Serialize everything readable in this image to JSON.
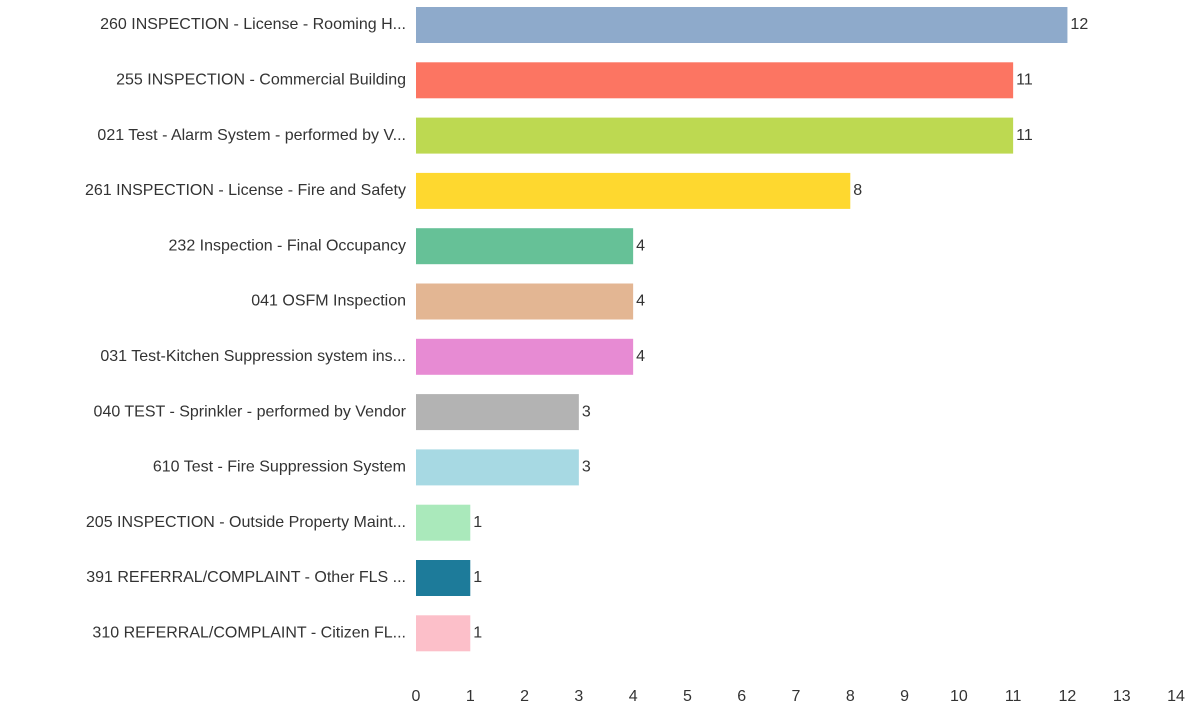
{
  "chart_data": {
    "type": "bar",
    "orientation": "horizontal",
    "categories": [
      "260 INSPECTION - License - Rooming H...",
      "255 INSPECTION - Commercial Building",
      "021 Test - Alarm System - performed by V...",
      "261 INSPECTION - License - Fire and Safety",
      "232 Inspection - Final Occupancy",
      "041 OSFM Inspection",
      "031 Test-Kitchen Suppression system ins...",
      "040 TEST - Sprinkler - performed by Vendor",
      "610 Test - Fire Suppression System",
      "205 INSPECTION - Outside Property Maint...",
      "391 REFERRAL/COMPLAINT - Other FLS ...",
      "310 REFERRAL/COMPLAINT - Citizen FL..."
    ],
    "values": [
      12,
      11,
      11,
      8,
      4,
      4,
      4,
      3,
      3,
      1,
      1,
      1
    ],
    "colors": [
      "#8eaacb",
      "#fc7562",
      "#bdd951",
      "#fed82f",
      "#66c197",
      "#e3b693",
      "#e78bd3",
      "#b3b3b3",
      "#a7d9e3",
      "#aae9bb",
      "#1d7b9a",
      "#fcbfc9"
    ],
    "xlim": [
      0,
      14
    ],
    "xticks": [
      0,
      1,
      2,
      3,
      4,
      5,
      6,
      7,
      8,
      9,
      10,
      11,
      12,
      13,
      14
    ],
    "grid": false
  }
}
